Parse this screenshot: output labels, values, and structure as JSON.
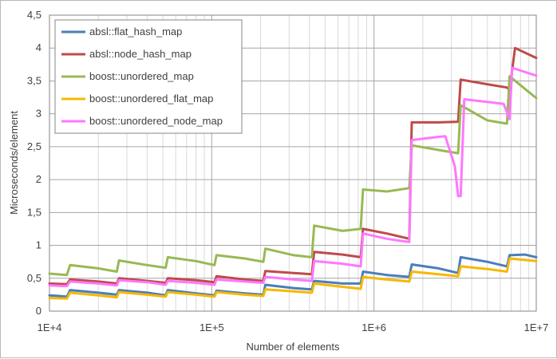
{
  "chart_data": {
    "type": "line",
    "xscale": "log",
    "xlim": [
      10000,
      10000000
    ],
    "ylim": [
      0,
      4.5
    ],
    "xlabel": "Number of elements",
    "ylabel": "Microseconds/element",
    "x_ticks": [
      {
        "value": 10000,
        "label": "1E+4"
      },
      {
        "value": 100000,
        "label": "1E+5"
      },
      {
        "value": 1000000,
        "label": "1E+6"
      },
      {
        "value": 10000000,
        "label": "1E+7"
      }
    ],
    "y_ticks": [
      {
        "value": 0,
        "label": "0"
      },
      {
        "value": 0.5,
        "label": "0,5"
      },
      {
        "value": 1,
        "label": "1"
      },
      {
        "value": 1.5,
        "label": "1,5"
      },
      {
        "value": 2,
        "label": "2"
      },
      {
        "value": 2.5,
        "label": "2,5"
      },
      {
        "value": 3,
        "label": "3"
      },
      {
        "value": 3.5,
        "label": "3,5"
      },
      {
        "value": 4,
        "label": "4"
      },
      {
        "value": 4.5,
        "label": "4,5"
      }
    ],
    "grid": "major and minor",
    "legend_position": "top-left",
    "series": [
      {
        "name": "absl::flat_hash_map",
        "color": "#4a7ebb",
        "points": [
          [
            10000,
            0.24
          ],
          [
            11500,
            0.23
          ],
          [
            12800,
            0.22
          ],
          [
            13400,
            0.32
          ],
          [
            20000,
            0.28
          ],
          [
            26000,
            0.25
          ],
          [
            26800,
            0.32
          ],
          [
            40000,
            0.28
          ],
          [
            52000,
            0.24
          ],
          [
            53600,
            0.32
          ],
          [
            80000,
            0.27
          ],
          [
            104000,
            0.24
          ],
          [
            107000,
            0.31
          ],
          [
            160000,
            0.27
          ],
          [
            208000,
            0.25
          ],
          [
            214000,
            0.4
          ],
          [
            320000,
            0.35
          ],
          [
            414000,
            0.33
          ],
          [
            428000,
            0.46
          ],
          [
            640000,
            0.42
          ],
          [
            828000,
            0.42
          ],
          [
            856000,
            0.6
          ],
          [
            1200000,
            0.55
          ],
          [
            1650000,
            0.52
          ],
          [
            1710000,
            0.71
          ],
          [
            2500000,
            0.65
          ],
          [
            3300000,
            0.58
          ],
          [
            3420000,
            0.82
          ],
          [
            5000000,
            0.75
          ],
          [
            6600000,
            0.68
          ],
          [
            6850000,
            0.85
          ],
          [
            8500000,
            0.86
          ],
          [
            10000000,
            0.82
          ]
        ]
      },
      {
        "name": "absl::node_hash_map",
        "color": "#be4b48",
        "points": [
          [
            10000,
            0.42
          ],
          [
            12800,
            0.41
          ],
          [
            13400,
            0.48
          ],
          [
            20000,
            0.45
          ],
          [
            26000,
            0.42
          ],
          [
            26800,
            0.5
          ],
          [
            40000,
            0.46
          ],
          [
            52000,
            0.43
          ],
          [
            53600,
            0.5
          ],
          [
            80000,
            0.47
          ],
          [
            104000,
            0.44
          ],
          [
            107000,
            0.53
          ],
          [
            160000,
            0.48
          ],
          [
            208000,
            0.46
          ],
          [
            214000,
            0.61
          ],
          [
            320000,
            0.58
          ],
          [
            414000,
            0.56
          ],
          [
            428000,
            0.9
          ],
          [
            640000,
            0.86
          ],
          [
            828000,
            0.82
          ],
          [
            856000,
            1.25
          ],
          [
            1200000,
            1.18
          ],
          [
            1650000,
            1.1
          ],
          [
            1710000,
            2.87
          ],
          [
            2500000,
            2.87
          ],
          [
            3300000,
            2.88
          ],
          [
            3420000,
            3.52
          ],
          [
            5000000,
            3.45
          ],
          [
            6600000,
            3.4
          ],
          [
            6850000,
            3.36
          ],
          [
            7400000,
            4.0
          ],
          [
            10000000,
            3.85
          ]
        ]
      },
      {
        "name": "boost::unordered_map",
        "color": "#98b954",
        "points": [
          [
            10000,
            0.57
          ],
          [
            12800,
            0.55
          ],
          [
            13400,
            0.7
          ],
          [
            20000,
            0.65
          ],
          [
            26000,
            0.6
          ],
          [
            26800,
            0.77
          ],
          [
            40000,
            0.7
          ],
          [
            52000,
            0.66
          ],
          [
            53600,
            0.82
          ],
          [
            80000,
            0.76
          ],
          [
            104000,
            0.7
          ],
          [
            107000,
            0.85
          ],
          [
            160000,
            0.8
          ],
          [
            208000,
            0.75
          ],
          [
            214000,
            0.95
          ],
          [
            320000,
            0.85
          ],
          [
            414000,
            0.82
          ],
          [
            428000,
            1.3
          ],
          [
            640000,
            1.22
          ],
          [
            828000,
            1.25
          ],
          [
            856000,
            1.85
          ],
          [
            1200000,
            1.82
          ],
          [
            1650000,
            1.87
          ],
          [
            1710000,
            2.52
          ],
          [
            2500000,
            2.45
          ],
          [
            3300000,
            2.4
          ],
          [
            3420000,
            3.13
          ],
          [
            5000000,
            2.9
          ],
          [
            6600000,
            2.85
          ],
          [
            6850000,
            3.57
          ],
          [
            10000000,
            3.24
          ]
        ]
      },
      {
        "name": "boost::unordered_flat_map",
        "color": "#f6b800",
        "points": [
          [
            10000,
            0.2
          ],
          [
            12800,
            0.19
          ],
          [
            13400,
            0.28
          ],
          [
            20000,
            0.24
          ],
          [
            26000,
            0.21
          ],
          [
            26800,
            0.29
          ],
          [
            40000,
            0.25
          ],
          [
            52000,
            0.22
          ],
          [
            53600,
            0.29
          ],
          [
            80000,
            0.25
          ],
          [
            104000,
            0.22
          ],
          [
            107000,
            0.29
          ],
          [
            160000,
            0.25
          ],
          [
            208000,
            0.23
          ],
          [
            214000,
            0.33
          ],
          [
            320000,
            0.3
          ],
          [
            414000,
            0.28
          ],
          [
            428000,
            0.42
          ],
          [
            640000,
            0.37
          ],
          [
            828000,
            0.34
          ],
          [
            856000,
            0.52
          ],
          [
            1200000,
            0.48
          ],
          [
            1650000,
            0.45
          ],
          [
            1710000,
            0.6
          ],
          [
            2500000,
            0.56
          ],
          [
            3300000,
            0.53
          ],
          [
            3420000,
            0.68
          ],
          [
            5000000,
            0.64
          ],
          [
            6600000,
            0.6
          ],
          [
            6850000,
            0.8
          ],
          [
            10000000,
            0.76
          ]
        ]
      },
      {
        "name": "boost::unordered_node_map",
        "color": "#ff77ff",
        "points": [
          [
            10000,
            0.39
          ],
          [
            12800,
            0.38
          ],
          [
            13400,
            0.45
          ],
          [
            20000,
            0.42
          ],
          [
            26000,
            0.39
          ],
          [
            26800,
            0.47
          ],
          [
            40000,
            0.44
          ],
          [
            52000,
            0.4
          ],
          [
            53600,
            0.46
          ],
          [
            80000,
            0.43
          ],
          [
            104000,
            0.4
          ],
          [
            107000,
            0.48
          ],
          [
            160000,
            0.45
          ],
          [
            208000,
            0.43
          ],
          [
            214000,
            0.52
          ],
          [
            320000,
            0.48
          ],
          [
            414000,
            0.46
          ],
          [
            428000,
            0.76
          ],
          [
            640000,
            0.72
          ],
          [
            828000,
            0.68
          ],
          [
            856000,
            1.18
          ],
          [
            1200000,
            1.1
          ],
          [
            1650000,
            1.05
          ],
          [
            1710000,
            2.6
          ],
          [
            2500000,
            2.65
          ],
          [
            2750000,
            2.66
          ],
          [
            3150000,
            2.2
          ],
          [
            3300000,
            1.75
          ],
          [
            3420000,
            1.75
          ],
          [
            3600000,
            3.22
          ],
          [
            5000000,
            3.18
          ],
          [
            6300000,
            3.15
          ],
          [
            6850000,
            2.92
          ],
          [
            7100000,
            3.7
          ],
          [
            10000000,
            3.58
          ]
        ]
      }
    ]
  }
}
